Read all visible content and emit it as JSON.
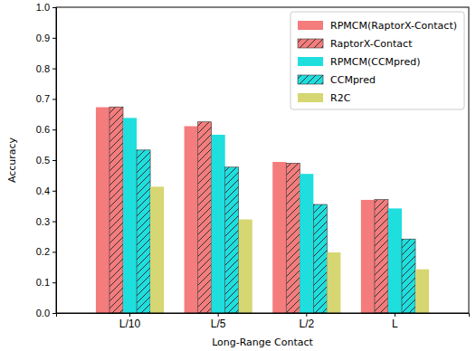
{
  "chart_data": {
    "type": "bar",
    "x_label": "Long-Range Contact",
    "y_label": "Accuracy",
    "categories": [
      "L/10",
      "L/5",
      "L/2",
      "L"
    ],
    "series": [
      {
        "name": "RPMCM(RaptorX-Contact)",
        "color": "#f47c7c",
        "values": [
          0.673,
          0.611,
          0.494,
          0.37
        ]
      },
      {
        "name": "RaptorX-Contact",
        "color": "#f47c7c",
        "values": [
          0.674,
          0.625,
          0.49,
          0.371
        ]
      },
      {
        "name": "RPMCM(CCMpred)",
        "color": "#1fdede",
        "values": [
          0.638,
          0.583,
          0.455,
          0.342
        ]
      },
      {
        "name": "CCMpred",
        "color": "#1fdede",
        "values": [
          0.533,
          0.477,
          0.355,
          0.242
        ]
      },
      {
        "name": "R2C",
        "color": "#d6d672",
        "values": [
          0.413,
          0.306,
          0.198,
          0.143
        ]
      }
    ],
    "ylim": [
      0,
      1
    ],
    "yticks": [
      {
        "value": 0,
        "label": "0.0"
      },
      {
        "value": 0.1,
        "label": "0.1"
      },
      {
        "value": 0.2,
        "label": "0.2"
      },
      {
        "value": 0.3,
        "label": "0.3"
      },
      {
        "value": 0.4,
        "label": "0.4"
      },
      {
        "value": 0.5,
        "label": "0.5"
      },
      {
        "value": 0.6,
        "label": "0.6"
      },
      {
        "value": 0.7,
        "label": "0.7"
      },
      {
        "value": 0.8,
        "label": "0.8"
      },
      {
        "value": 0.9,
        "label": "0.9"
      },
      {
        "value": 1,
        "label": "1.0"
      }
    ],
    "legend": "upper right",
    "grid": false
  }
}
